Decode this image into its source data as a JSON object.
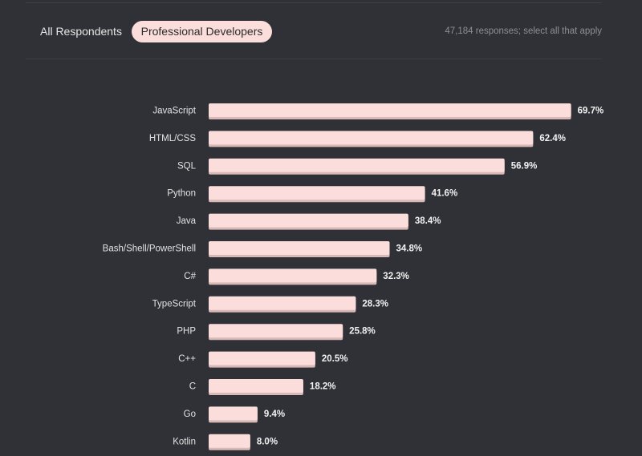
{
  "tabs": {
    "all_respondents": "All Respondents",
    "professional_developers": "Professional Developers",
    "active": "Professional Developers"
  },
  "note": "47,184 responses; select all that apply",
  "colors": {
    "background": "#2f3136",
    "bar": "#fbdedc",
    "bar_shadow": "#d9b9b7",
    "active_tab": "#fbdedc"
  },
  "chart_data": {
    "type": "bar",
    "orientation": "horizontal",
    "title": "",
    "xlabel": "",
    "ylabel": "",
    "xlim": [
      0,
      70
    ],
    "grid": false,
    "legend": "none",
    "categories": [
      "JavaScript",
      "HTML/CSS",
      "SQL",
      "Python",
      "Java",
      "Bash/Shell/PowerShell",
      "C#",
      "TypeScript",
      "PHP",
      "C++",
      "C",
      "Go",
      "Kotlin"
    ],
    "values": [
      69.7,
      62.4,
      56.9,
      41.6,
      38.4,
      34.8,
      32.3,
      28.3,
      25.8,
      20.5,
      18.2,
      9.4,
      8.0
    ],
    "value_labels": [
      "69.7%",
      "62.4%",
      "56.9%",
      "41.6%",
      "38.4%",
      "34.8%",
      "32.3%",
      "28.3%",
      "25.8%",
      "20.5%",
      "18.2%",
      "9.4%",
      "8.0%"
    ]
  }
}
